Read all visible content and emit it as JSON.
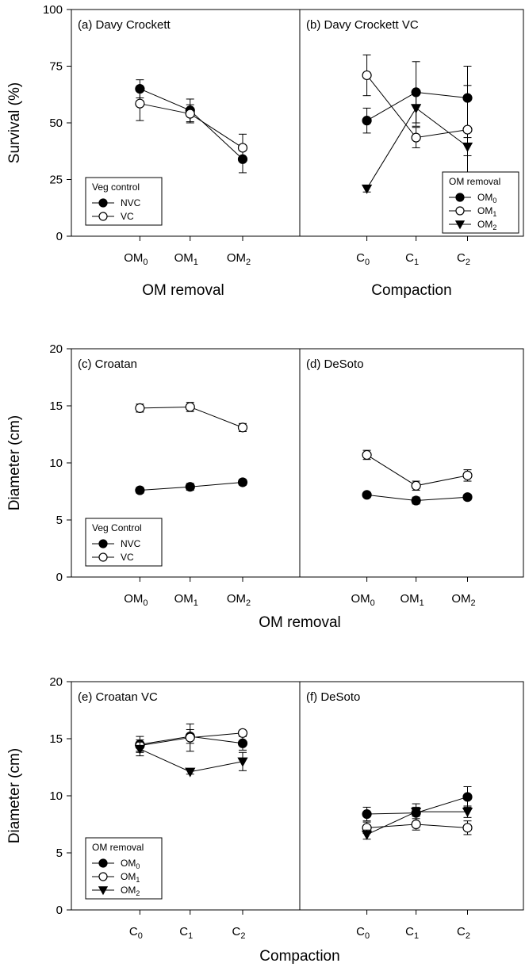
{
  "figure": {
    "xlabel_row1": "OM removal",
    "xlabel_row1_right": "Compaction",
    "xlabel_row2": "OM removal",
    "xlabel_row3": "Compaction"
  },
  "colors": {
    "filled": "#000000",
    "open": "#ffffff",
    "stroke": "#000000"
  },
  "chart_data": [
    {
      "panel": "a",
      "type": "line",
      "title": "(a) Davy Crockett",
      "ylabel": "Survival (%)",
      "xlabel": "OM removal",
      "ylim": [
        0,
        100
      ],
      "yticks": [
        0,
        25,
        50,
        75,
        100
      ],
      "categories": [
        {
          "main": "OM",
          "sub": "0"
        },
        {
          "main": "OM",
          "sub": "1"
        },
        {
          "main": "OM",
          "sub": "2"
        }
      ],
      "legend": {
        "title": "Veg control",
        "position": "bottom-left"
      },
      "series": [
        {
          "name": "NVC",
          "name_main": "NVC",
          "name_sub": "",
          "marker": "filled-circle",
          "values": [
            65,
            55.5,
            34
          ],
          "err": [
            4,
            5,
            6
          ]
        },
        {
          "name": "VC",
          "name_main": "VC",
          "name_sub": "",
          "marker": "open-circle",
          "values": [
            58.5,
            54,
            39
          ],
          "err": [
            7.5,
            4,
            6
          ]
        }
      ]
    },
    {
      "panel": "b",
      "type": "line",
      "title": "(b) Davy Crockett VC",
      "xlabel": "Compaction",
      "ylim": [
        0,
        100
      ],
      "categories": [
        {
          "main": "C",
          "sub": "0"
        },
        {
          "main": "C",
          "sub": "1"
        },
        {
          "main": "C",
          "sub": "2"
        }
      ],
      "legend": {
        "title": "OM  removal",
        "position": "bottom-right"
      },
      "series": [
        {
          "name": "OM0",
          "name_main": "OM",
          "name_sub": "0",
          "marker": "filled-circle",
          "values": [
            51,
            63.5,
            61
          ],
          "err": [
            5.5,
            13.5,
            14
          ]
        },
        {
          "name": "OM1",
          "name_main": "OM",
          "name_sub": "1",
          "marker": "open-circle",
          "values": [
            71,
            43.5,
            47
          ],
          "err": [
            9,
            4.5,
            19.5
          ]
        },
        {
          "name": "OM2",
          "name_main": "OM",
          "name_sub": "2",
          "marker": "filled-triangle",
          "values": [
            21,
            56.5,
            39.5
          ],
          "err": [
            1.5,
            8,
            4
          ]
        }
      ]
    },
    {
      "panel": "c",
      "type": "line",
      "title": "(c) Croatan",
      "ylabel": "Diameter (cm)",
      "xlabel": "OM removal",
      "ylim": [
        0,
        20
      ],
      "yticks": [
        0,
        5,
        10,
        15,
        20
      ],
      "categories": [
        {
          "main": "OM",
          "sub": "0"
        },
        {
          "main": "OM",
          "sub": "1"
        },
        {
          "main": "OM",
          "sub": "2"
        }
      ],
      "legend": {
        "title": "Veg Control",
        "position": "bottom-left"
      },
      "series": [
        {
          "name": "NVC",
          "name_main": "NVC",
          "name_sub": "",
          "marker": "filled-circle",
          "values": [
            7.6,
            7.9,
            8.3
          ],
          "err": [
            0.25,
            0.3,
            0.25
          ]
        },
        {
          "name": "VC",
          "name_main": "VC",
          "name_sub": "",
          "marker": "open-circle",
          "values": [
            14.8,
            14.9,
            13.1
          ],
          "err": [
            0.35,
            0.4,
            0.35
          ]
        }
      ]
    },
    {
      "panel": "d",
      "type": "line",
      "title": "(d) DeSoto",
      "xlabel": "OM removal",
      "ylim": [
        0,
        20
      ],
      "categories": [
        {
          "main": "OM",
          "sub": "0"
        },
        {
          "main": "OM",
          "sub": "1"
        },
        {
          "main": "OM",
          "sub": "2"
        }
      ],
      "series": [
        {
          "name": "NVC",
          "name_main": "NVC",
          "name_sub": "",
          "marker": "filled-circle",
          "values": [
            7.2,
            6.7,
            7.0
          ],
          "err": [
            0.2,
            0.3,
            0.25
          ]
        },
        {
          "name": "VC",
          "name_main": "VC",
          "name_sub": "",
          "marker": "open-circle",
          "values": [
            10.7,
            8.0,
            8.9
          ],
          "err": [
            0.4,
            0.4,
            0.5
          ]
        }
      ]
    },
    {
      "panel": "e",
      "type": "line",
      "title": "(e) Croatan VC",
      "ylabel": "Diameter (cm)",
      "xlabel": "Compaction",
      "ylim": [
        0,
        20
      ],
      "yticks": [
        0,
        5,
        10,
        15,
        20
      ],
      "categories": [
        {
          "main": "C",
          "sub": "0"
        },
        {
          "main": "C",
          "sub": "1"
        },
        {
          "main": "C",
          "sub": "2"
        }
      ],
      "legend": {
        "title": "OM  removal",
        "position": "bottom-left"
      },
      "series": [
        {
          "name": "OM0",
          "name_main": "OM",
          "name_sub": "0",
          "marker": "filled-circle",
          "values": [
            14.5,
            15.2,
            14.6
          ],
          "err": [
            0.7,
            0.6,
            0.6
          ]
        },
        {
          "name": "OM1",
          "name_main": "OM",
          "name_sub": "1",
          "marker": "open-circle",
          "values": [
            14.4,
            15.1,
            15.5
          ],
          "err": [
            0.5,
            1.2,
            0.2
          ]
        },
        {
          "name": "OM2",
          "name_main": "OM",
          "name_sub": "2",
          "marker": "filled-triangle",
          "values": [
            14.1,
            12.1,
            13.0
          ],
          "err": [
            0.6,
            0.2,
            0.8
          ]
        }
      ]
    },
    {
      "panel": "f",
      "type": "line",
      "title": "(f) DeSoto",
      "xlabel": "Compaction",
      "ylim": [
        0,
        20
      ],
      "categories": [
        {
          "main": "C",
          "sub": "0"
        },
        {
          "main": "C",
          "sub": "1"
        },
        {
          "main": "C",
          "sub": "2"
        }
      ],
      "series": [
        {
          "name": "OM0",
          "name_main": "OM",
          "name_sub": "0",
          "marker": "filled-circle",
          "values": [
            8.4,
            8.5,
            9.9
          ],
          "err": [
            0.6,
            0.8,
            0.9
          ]
        },
        {
          "name": "OM1",
          "name_main": "OM",
          "name_sub": "1",
          "marker": "open-circle",
          "values": [
            7.2,
            7.5,
            7.2
          ],
          "err": [
            0.5,
            0.5,
            0.6
          ]
        },
        {
          "name": "OM2",
          "name_main": "OM",
          "name_sub": "2",
          "marker": "filled-triangle",
          "values": [
            6.6,
            8.6,
            8.6
          ],
          "err": [
            0.4,
            0.4,
            0.5
          ]
        }
      ]
    }
  ]
}
